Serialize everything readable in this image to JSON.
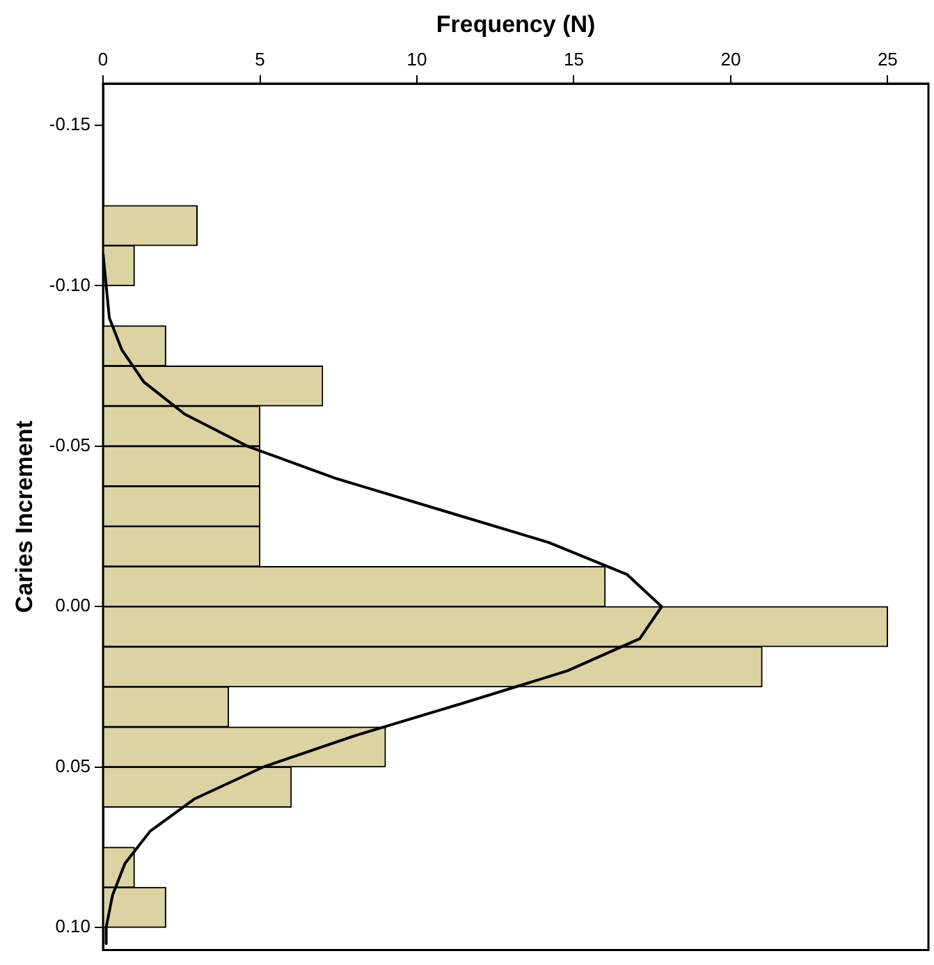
{
  "chart_data": {
    "type": "histogram",
    "orientation": "horizontal",
    "xlabel": "Frequency (N)",
    "ylabel": "Caries Increment",
    "xlim": [
      0,
      26.3
    ],
    "xticks": [
      0,
      5,
      10,
      15,
      20,
      25
    ],
    "ylim": [
      0.107,
      -0.163
    ],
    "yticks": [
      {
        "value": -0.15,
        "label": "-0.15"
      },
      {
        "value": -0.1,
        "label": "-0.10"
      },
      {
        "value": -0.05,
        "label": "-0.05"
      },
      {
        "value": 0,
        "label": "0.00"
      },
      {
        "value": 0.05,
        "label": "0.05"
      },
      {
        "value": 0.1,
        "label": "0.10"
      }
    ],
    "marker": "none",
    "series": [
      {
        "color": "#ddd3a2",
        "bins": [
          -0.125,
          -0.1125,
          -0.1,
          -0.0875,
          -0.075,
          -0.0625,
          -0.05,
          -0.0375,
          -0.025,
          -0.0125,
          0,
          0.0125,
          0.025,
          0.0375,
          0.05,
          0.0625,
          0.075,
          0.0875,
          0.1
        ],
        "values": [
          3,
          1,
          0,
          2,
          7,
          5,
          5,
          5,
          5,
          16,
          25,
          21,
          4,
          9,
          6,
          0,
          1,
          2
        ]
      },
      {
        "type": "line",
        "color": "#000000",
        "x": [
          -0.11,
          -0.1,
          -0.09,
          -0.08,
          -0.07,
          -0.06,
          -0.05,
          -0.04,
          -0.03,
          -0.02,
          -0.01,
          0,
          0.01,
          0.02,
          0.03,
          0.04,
          0.05,
          0.06,
          0.07,
          0.08,
          0.09,
          0.1,
          0.105
        ],
        "values": [
          0,
          0.1,
          0.2,
          0.6,
          1.3,
          2.6,
          4.6,
          7.4,
          10.8,
          14.2,
          16.7,
          17.8,
          17.1,
          14.8,
          11.5,
          8.1,
          5.1,
          2.9,
          1.5,
          0.7,
          0.3,
          0.1,
          0.1
        ]
      }
    ]
  }
}
